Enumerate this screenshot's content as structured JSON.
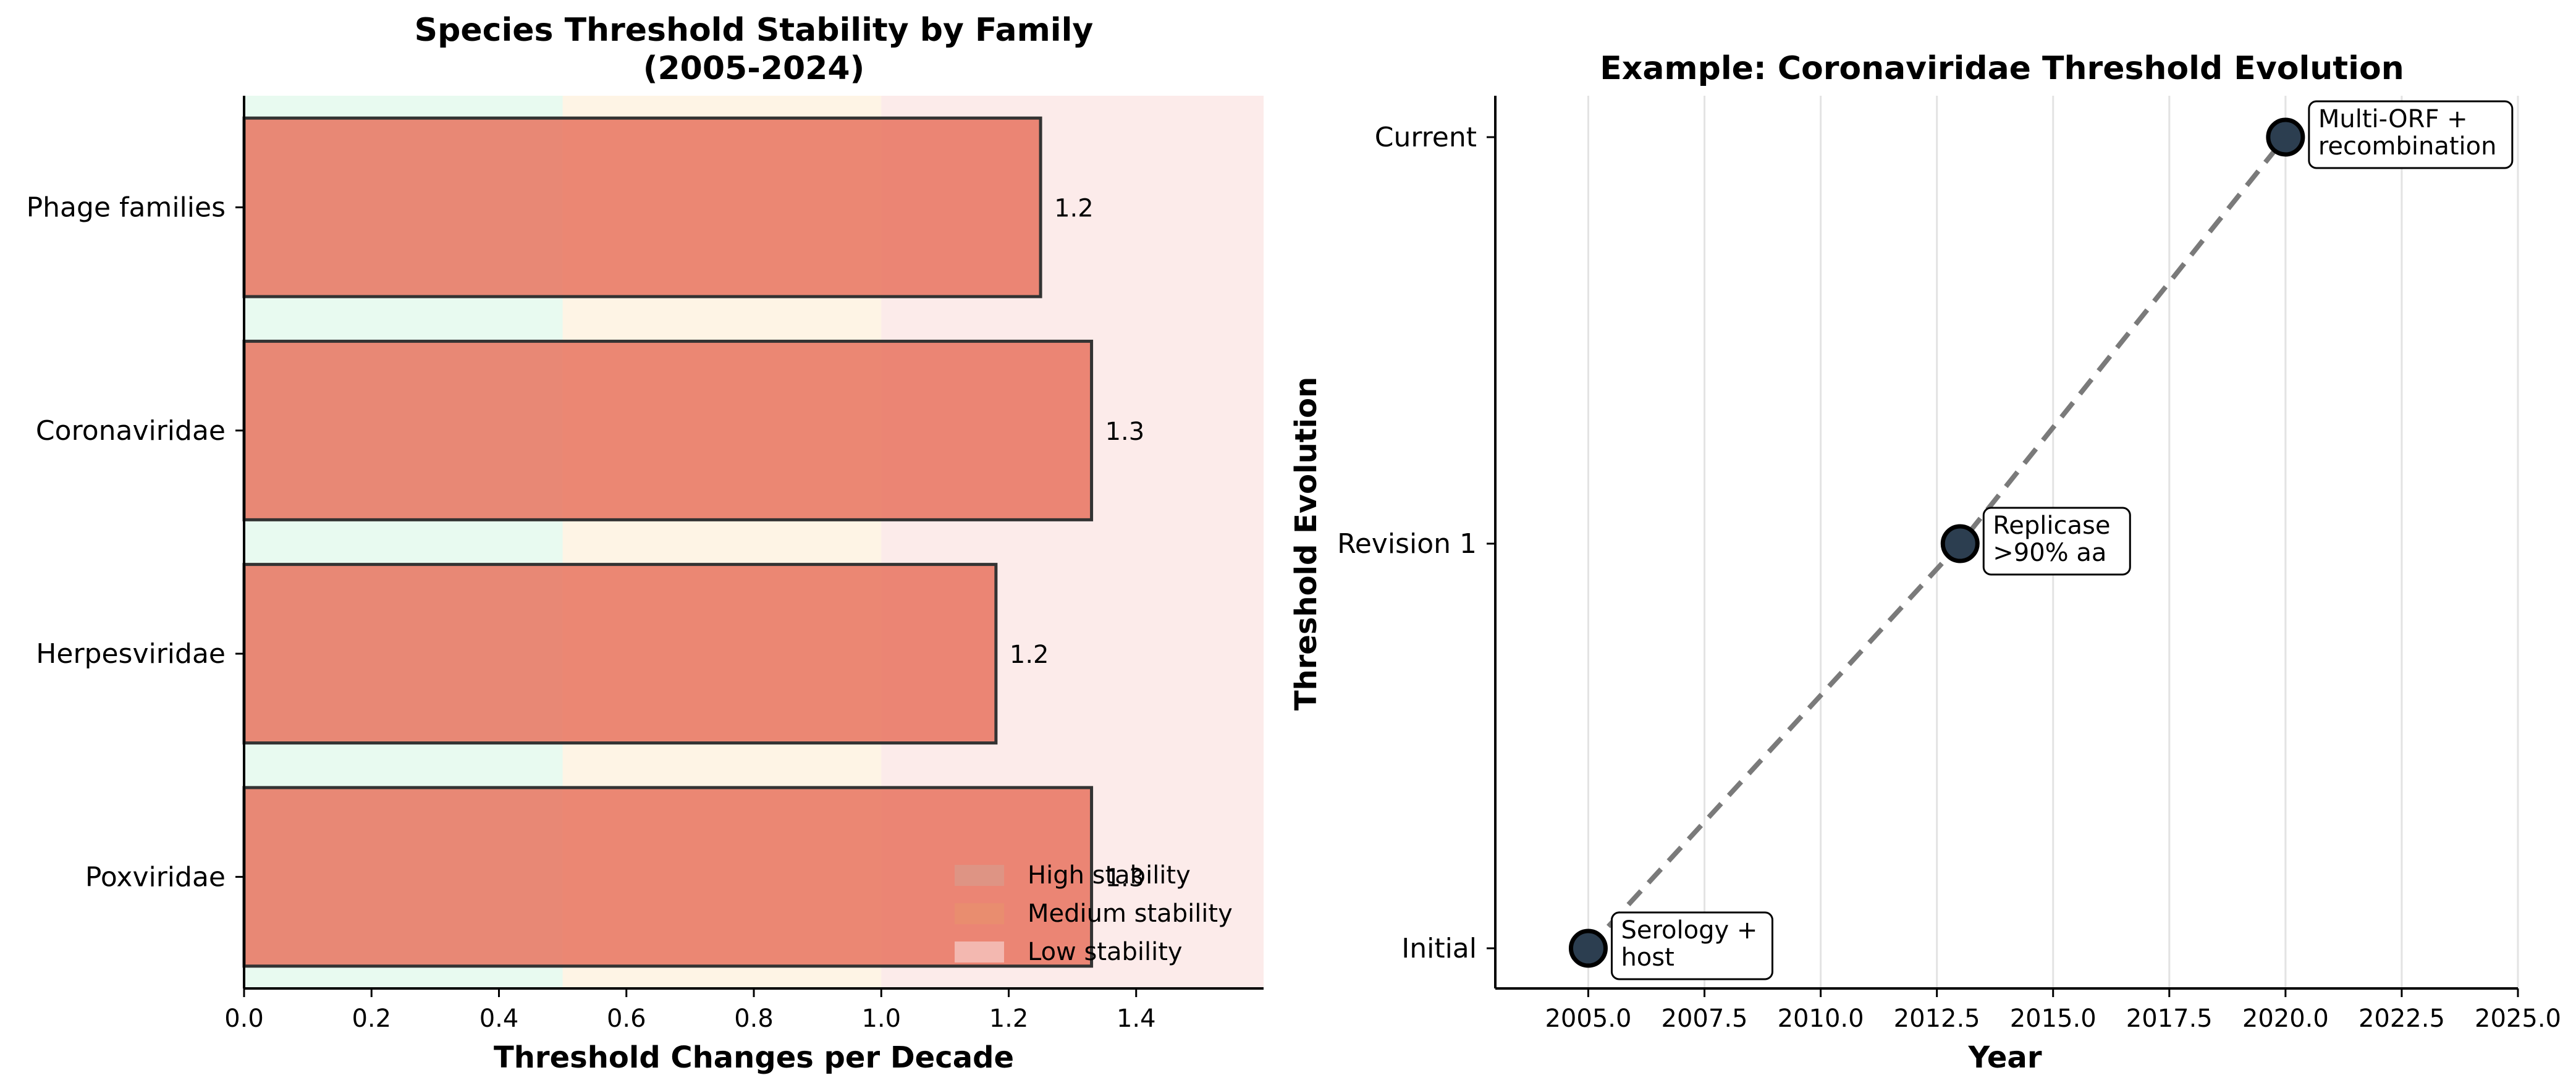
{
  "chart_data": [
    {
      "type": "bar",
      "orientation": "horizontal",
      "title": "Species Threshold Stability by Family",
      "subtitle": "(2005-2024)",
      "xlabel": "Threshold Changes per Decade",
      "ylabel": "",
      "xlim": [
        0,
        1.6
      ],
      "x_ticks": [
        "0.0",
        "0.2",
        "0.4",
        "0.6",
        "0.8",
        "1.0",
        "1.2",
        "1.4"
      ],
      "categories": [
        "Poxviridae",
        "Herpesviridae",
        "Coronaviridae",
        "Phage families"
      ],
      "values": [
        1.33,
        1.18,
        1.33,
        1.25
      ],
      "value_labels": [
        "1.3",
        "1.2",
        "1.3",
        "1.2"
      ],
      "bar_color": "#e8735f",
      "bands": [
        {
          "label": "High stability",
          "from": 0,
          "to": 0.5,
          "color": "#d5f5e3"
        },
        {
          "label": "Medium stability",
          "from": 0.5,
          "to": 1.0,
          "color": "#fdebd0"
        },
        {
          "label": "Low stability",
          "from": 1.0,
          "to": 1.6,
          "color": "#fadbd8"
        }
      ],
      "legend": {
        "position": "lower-right",
        "entries": [
          "High stability",
          "Medium stability",
          "Low stability"
        ],
        "colors": [
          "#d99a8a",
          "#e8906e",
          "#f6c9c4"
        ]
      },
      "grid": false
    },
    {
      "type": "line",
      "title": "Example: Coronaviridae Threshold Evolution",
      "xlabel": "Year",
      "ylabel": "Threshold Evolution",
      "xlim": [
        2003,
        2025
      ],
      "x_ticks": [
        "2005.0",
        "2007.5",
        "2010.0",
        "2012.5",
        "2015.0",
        "2017.5",
        "2020.0",
        "2022.5",
        "2025.0"
      ],
      "y_categories": [
        "Initial",
        "Revision 1",
        "Current"
      ],
      "points": [
        {
          "x": 2005,
          "y": "Initial",
          "annotation": [
            "Serology +",
            "host"
          ]
        },
        {
          "x": 2013,
          "y": "Revision 1",
          "annotation": [
            "Replicase",
            ">90% aa"
          ]
        },
        {
          "x": 2020,
          "y": "Current",
          "annotation": [
            "Multi-ORF +",
            "recombination"
          ]
        }
      ],
      "line_style": "dashed",
      "line_color": "#7a7a7a",
      "marker_color": "#2c3e50",
      "grid": "x"
    }
  ]
}
